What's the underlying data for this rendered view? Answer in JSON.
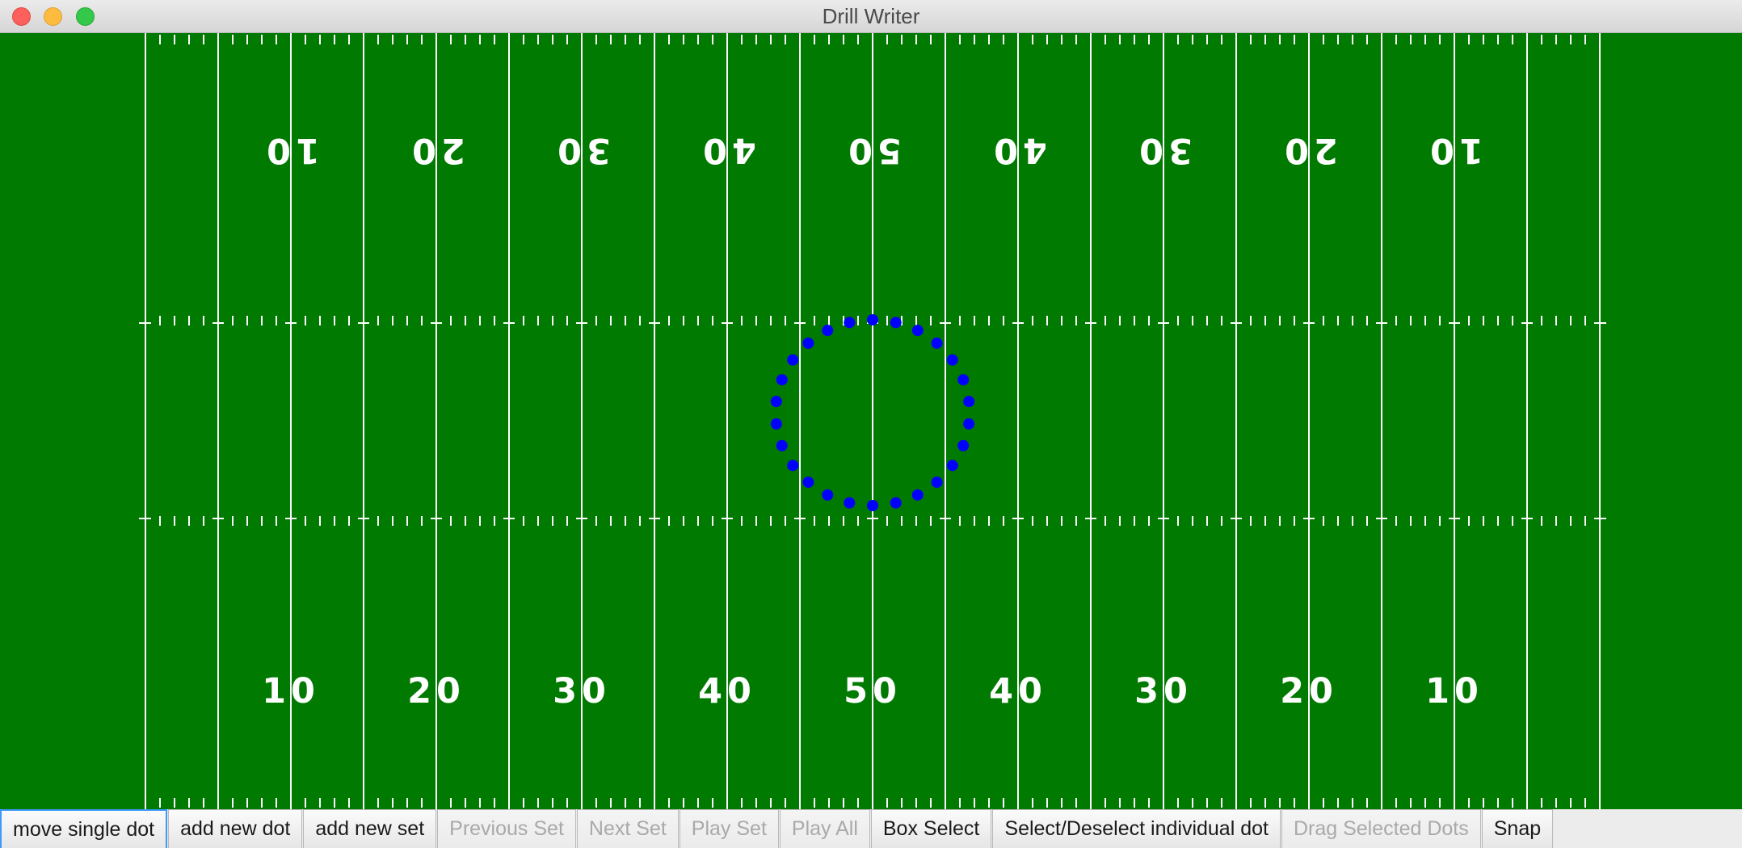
{
  "window": {
    "title": "Drill Writer"
  },
  "field": {
    "background_color": "#007a00",
    "line_color": "#ffffff",
    "yard_numbers_top": [
      "10",
      "20",
      "30",
      "40",
      "50",
      "40",
      "30",
      "20",
      "10"
    ],
    "yard_numbers_bottom": [
      "10",
      "20",
      "30",
      "40",
      "50",
      "40",
      "30",
      "20",
      "10"
    ]
  },
  "dots": {
    "color": "#0000ff",
    "formation": "circle",
    "count": 26
  },
  "toolbar": {
    "buttons": [
      {
        "label": "move single dot",
        "enabled": true,
        "focused": true
      },
      {
        "label": "add new dot",
        "enabled": true
      },
      {
        "label": "add new set",
        "enabled": true
      },
      {
        "label": "Previous Set",
        "enabled": false
      },
      {
        "label": "Next Set",
        "enabled": false
      },
      {
        "label": "Play Set",
        "enabled": false
      },
      {
        "label": "Play All",
        "enabled": false
      },
      {
        "label": "Box Select",
        "enabled": true
      },
      {
        "label": "Select/Deselect individual dot",
        "enabled": true
      },
      {
        "label": "Drag Selected Dots",
        "enabled": false
      },
      {
        "label": "Snap",
        "enabled": true
      }
    ]
  }
}
